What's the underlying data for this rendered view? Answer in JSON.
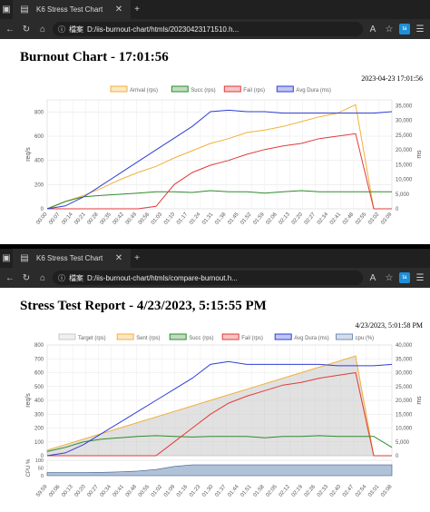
{
  "windows": [
    {
      "tab_title": "K6 Stress Test Chart",
      "address_label": "檔案",
      "url": "D:/iis-burnout-chart/htmls/20230423171510.h...",
      "page_title": "Burnout Chart - 17:01:56",
      "timestamp": "2023-04-23 17:01:56"
    },
    {
      "tab_title": "K6 Stress Test Chart",
      "address_label": "檔案",
      "url": "D:/iis-burnout-chart/htmls/compare-burnout.h...",
      "page_title": "Stress Test Report - 4/23/2023, 5:15:55 PM",
      "timestamp": "4/23/2023, 5:01:58 PM"
    }
  ],
  "colors": {
    "target": "#c9c9c9",
    "arrival": "#f2b13a",
    "sent": "#f2b13a",
    "succ": "#2e8b2e",
    "fail": "#e23a3a",
    "dura": "#2f3fd6",
    "cpu": "#6f8fb8"
  },
  "chart_data": [
    {
      "type": "line",
      "legend": [
        "Arrival (rps)",
        "Succ (rps)",
        "Fail (rps)",
        "Avg Dura (ms)"
      ],
      "legend_position": "top",
      "ylabel": "req/s",
      "y2label": "ms",
      "ylim": [
        0,
        900
      ],
      "y_ticks": [
        "0",
        "200",
        "400",
        "600",
        "800"
      ],
      "y2lim": [
        0,
        37000
      ],
      "y2_ticks": [
        "0",
        "5,000",
        "10,000",
        "15,000",
        "20,000",
        "25,000",
        "30,000",
        "35,000"
      ],
      "grid": true,
      "x_labels": [
        "00:00",
        "00:07",
        "00:14",
        "00:21",
        "00:28",
        "00:35",
        "00:42",
        "00:49",
        "00:56",
        "01:03",
        "01:10",
        "01:17",
        "01:24",
        "01:31",
        "01:38",
        "01:45",
        "01:52",
        "01:59",
        "02:06",
        "02:13",
        "02:20",
        "02:27",
        "02:34",
        "02:41",
        "02:48",
        "02:55",
        "03:02",
        "03:09"
      ],
      "x": [
        0,
        10,
        20,
        30,
        40,
        50,
        60,
        70,
        80,
        90,
        100,
        110,
        120,
        130,
        140,
        150,
        160,
        170,
        180,
        190
      ],
      "series": [
        {
          "name": "Arrival (rps)",
          "values": [
            0,
            60,
            110,
            170,
            240,
            300,
            350,
            420,
            480,
            540,
            580,
            630,
            650,
            680,
            720,
            760,
            790,
            860,
            0,
            0
          ]
        },
        {
          "name": "Succ (rps)",
          "values": [
            0,
            60,
            100,
            110,
            120,
            130,
            140,
            140,
            135,
            150,
            140,
            140,
            130,
            140,
            150,
            140,
            140,
            140,
            140,
            140
          ]
        },
        {
          "name": "Fail (rps)",
          "values": [
            0,
            0,
            0,
            0,
            0,
            0,
            20,
            200,
            300,
            360,
            400,
            450,
            490,
            520,
            540,
            580,
            600,
            620,
            0,
            0
          ]
        },
        {
          "name": "Avg Dura (ms)",
          "values": [
            0,
            1000,
            4000,
            8000,
            12000,
            16000,
            20000,
            24000,
            28000,
            33000,
            33500,
            33000,
            33000,
            32500,
            32500,
            32500,
            32500,
            32500,
            32500,
            33000
          ]
        }
      ]
    },
    {
      "type": "line",
      "legend": [
        "Target (rps)",
        "Sent (rps)",
        "Succ (rps)",
        "Fail (rps)",
        "Avg Dura (ms)",
        "cpu (%)"
      ],
      "legend_position": "top",
      "ylabel": "req/s",
      "y2label": "ms",
      "cpu_label": "CPU %",
      "ylim": [
        0,
        800
      ],
      "y_ticks": [
        "0",
        "100",
        "200",
        "300",
        "400",
        "500",
        "600",
        "700",
        "800"
      ],
      "y2lim": [
        0,
        40000
      ],
      "y2_ticks": [
        "0",
        "5,000",
        "10,000",
        "15,000",
        "20,000",
        "25,000",
        "30,000",
        "35,000",
        "40,000"
      ],
      "cpu_ticks": [
        "0",
        "50",
        "100"
      ],
      "grid": true,
      "x_labels": [
        "59:59",
        "00:06",
        "00:13",
        "00:20",
        "00:27",
        "00:34",
        "00:41",
        "00:48",
        "00:55",
        "01:02",
        "01:09",
        "01:16",
        "01:23",
        "01:30",
        "01:37",
        "01:44",
        "01:51",
        "01:58",
        "02:05",
        "02:12",
        "02:19",
        "02:26",
        "02:33",
        "02:40",
        "02:47",
        "02:54",
        "03:01",
        "03:08"
      ],
      "x": [
        0,
        10,
        20,
        30,
        40,
        50,
        60,
        70,
        80,
        90,
        100,
        110,
        120,
        130,
        140,
        150,
        160,
        170,
        180,
        190
      ],
      "series": [
        {
          "name": "Target (rps)",
          "values": [
            40,
            80,
            120,
            160,
            200,
            240,
            280,
            320,
            360,
            400,
            440,
            480,
            520,
            560,
            600,
            640,
            680,
            720,
            0,
            0
          ]
        },
        {
          "name": "Sent (rps)",
          "values": [
            40,
            80,
            120,
            160,
            200,
            240,
            280,
            320,
            360,
            400,
            440,
            480,
            520,
            560,
            600,
            640,
            680,
            720,
            0,
            0
          ]
        },
        {
          "name": "Succ (rps)",
          "values": [
            30,
            60,
            100,
            120,
            130,
            140,
            145,
            140,
            135,
            140,
            140,
            140,
            130,
            140,
            140,
            145,
            140,
            140,
            140,
            60
          ]
        },
        {
          "name": "Fail (rps)",
          "values": [
            0,
            0,
            0,
            0,
            0,
            0,
            0,
            100,
            200,
            300,
            380,
            430,
            470,
            510,
            530,
            560,
            580,
            600,
            0,
            0
          ]
        },
        {
          "name": "Avg Dura (ms)",
          "values": [
            0,
            1000,
            4000,
            8000,
            12000,
            16000,
            20000,
            24000,
            28000,
            33000,
            34000,
            33000,
            33000,
            33000,
            33000,
            33000,
            32500,
            32500,
            32500,
            33000
          ]
        },
        {
          "name": "cpu (%)",
          "values": [
            20,
            20,
            20,
            22,
            25,
            30,
            40,
            60,
            70,
            70,
            70,
            70,
            70,
            70,
            70,
            70,
            70,
            70,
            70,
            70
          ]
        }
      ]
    }
  ]
}
